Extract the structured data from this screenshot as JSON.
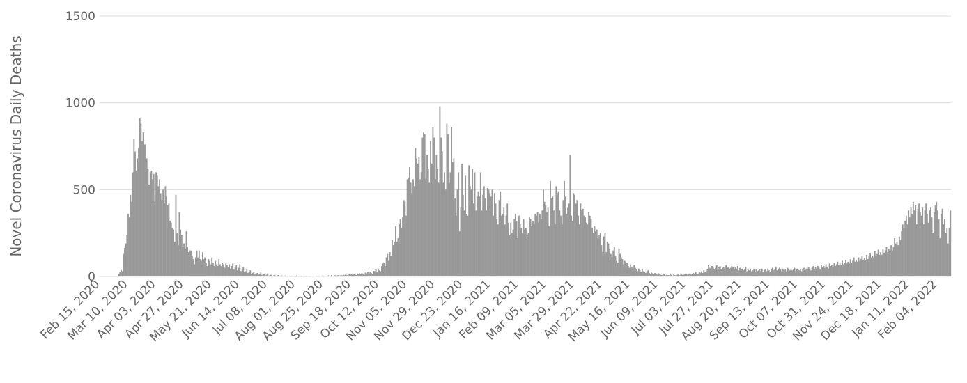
{
  "chart_data": {
    "type": "bar",
    "y_label": "Novel Coronavirus Daily Deaths",
    "color": "#999999",
    "grid": true,
    "ylim": [
      0,
      1500
    ],
    "yticks": [
      0,
      500,
      1000,
      1500
    ],
    "categories": [
      "Feb 15, 2020",
      null,
      null,
      null,
      null,
      null,
      null,
      null,
      null,
      null,
      null,
      null,
      null,
      null,
      null,
      null,
      null,
      null,
      null,
      null,
      null,
      null,
      null,
      null,
      "Mar 10, 2020",
      null,
      null,
      null,
      null,
      null,
      null,
      null,
      null,
      null,
      null,
      null,
      null,
      null,
      null,
      null,
      null,
      null,
      null,
      null,
      null,
      null,
      null,
      null,
      "Apr 03, 2020",
      null,
      null,
      null,
      null,
      null,
      null,
      null,
      null,
      null,
      null,
      null,
      null,
      null,
      null,
      null,
      null,
      null,
      null,
      null,
      null,
      null,
      null,
      null,
      "Apr 27, 2020",
      null,
      null,
      null,
      null,
      null,
      null,
      null,
      null,
      null,
      null,
      null,
      null,
      null,
      null,
      null,
      null,
      null,
      null,
      null,
      null,
      null,
      null,
      null,
      "May 21, 2020",
      null,
      null,
      null,
      null,
      null,
      null,
      null,
      null,
      null,
      null,
      null,
      null,
      null,
      null,
      null,
      null,
      null,
      null,
      null,
      null,
      null,
      null,
      null,
      "Jun 14, 2020",
      null,
      null,
      null,
      null,
      null,
      null,
      null,
      null,
      null,
      null,
      null,
      null,
      null,
      null,
      null,
      null,
      null,
      null,
      null,
      null,
      null,
      null,
      null,
      "Jul 08, 2020",
      null,
      null,
      null,
      null,
      null,
      null,
      null,
      null,
      null,
      null,
      null,
      null,
      null,
      null,
      null,
      null,
      null,
      null,
      null,
      null,
      null,
      null,
      null,
      "Aug 01, 2020",
      null,
      null,
      null,
      null,
      null,
      null,
      null,
      null,
      null,
      null,
      null,
      null,
      null,
      null,
      null,
      null,
      null,
      null,
      null,
      null,
      null,
      null,
      null,
      "Aug 25, 2020",
      null,
      null,
      null,
      null,
      null,
      null,
      null,
      null,
      null,
      null,
      null,
      null,
      null,
      null,
      null,
      null,
      null,
      null,
      null,
      null,
      null,
      null,
      null,
      "Sep 18, 2020",
      null,
      null,
      null,
      null,
      null,
      null,
      null,
      null,
      null,
      null,
      null,
      null,
      null,
      null,
      null,
      null,
      null,
      null,
      null,
      null,
      null,
      null,
      null,
      "Oct 12, 2020",
      null,
      null,
      null,
      null,
      null,
      null,
      null,
      null,
      null,
      null,
      null,
      null,
      null,
      null,
      null,
      null,
      null,
      null,
      null,
      null,
      null,
      null,
      null,
      "Nov 05, 2020",
      null,
      null,
      null,
      null,
      null,
      null,
      null,
      null,
      null,
      null,
      null,
      null,
      null,
      null,
      null,
      null,
      null,
      null,
      null,
      null,
      null,
      null,
      null,
      "Nov 29, 2020",
      null,
      null,
      null,
      null,
      null,
      null,
      null,
      null,
      null,
      null,
      null,
      null,
      null,
      null,
      null,
      null,
      null,
      null,
      null,
      null,
      null,
      null,
      null,
      "Dec 23, 2020",
      null,
      null,
      null,
      null,
      null,
      null,
      null,
      null,
      null,
      null,
      null,
      null,
      null,
      null,
      null,
      null,
      null,
      null,
      null,
      null,
      null,
      null,
      null,
      "Jan 16, 2021",
      null,
      null,
      null,
      null,
      null,
      null,
      null,
      null,
      null,
      null,
      null,
      null,
      null,
      null,
      null,
      null,
      null,
      null,
      null,
      null,
      null,
      null,
      null,
      "Feb 09, 2021",
      null,
      null,
      null,
      null,
      null,
      null,
      null,
      null,
      null,
      null,
      null,
      null,
      null,
      null,
      null,
      null,
      null,
      null,
      null,
      null,
      null,
      null,
      null,
      "Mar 05, 2021",
      null,
      null,
      null,
      null,
      null,
      null,
      null,
      null,
      null,
      null,
      null,
      null,
      null,
      null,
      null,
      null,
      null,
      null,
      null,
      null,
      null,
      null,
      null,
      "Mar 29, 2021",
      null,
      null,
      null,
      null,
      null,
      null,
      null,
      null,
      null,
      null,
      null,
      null,
      null,
      null,
      null,
      null,
      null,
      null,
      null,
      null,
      null,
      null,
      null,
      "Apr 22, 2021",
      null,
      null,
      null,
      null,
      null,
      null,
      null,
      null,
      null,
      null,
      null,
      null,
      null,
      null,
      null,
      null,
      null,
      null,
      null,
      null,
      null,
      null,
      null,
      "May 16, 2021",
      null,
      null,
      null,
      null,
      null,
      null,
      null,
      null,
      null,
      null,
      null,
      null,
      null,
      null,
      null,
      null,
      null,
      null,
      null,
      null,
      null,
      null,
      null,
      "Jun 09, 2021",
      null,
      null,
      null,
      null,
      null,
      null,
      null,
      null,
      null,
      null,
      null,
      null,
      null,
      null,
      null,
      null,
      null,
      null,
      null,
      null,
      null,
      null,
      null,
      "Jul 03, 2021",
      null,
      null,
      null,
      null,
      null,
      null,
      null,
      null,
      null,
      null,
      null,
      null,
      null,
      null,
      null,
      null,
      null,
      null,
      null,
      null,
      null,
      null,
      null,
      "Jul 27, 2021",
      null,
      null,
      null,
      null,
      null,
      null,
      null,
      null,
      null,
      null,
      null,
      null,
      null,
      null,
      null,
      null,
      null,
      null,
      null,
      null,
      null,
      null,
      null,
      "Aug 20, 2021",
      null,
      null,
      null,
      null,
      null,
      null,
      null,
      null,
      null,
      null,
      null,
      null,
      null,
      null,
      null,
      null,
      null,
      null,
      null,
      null,
      null,
      null,
      null,
      "Sep 13, 2021",
      null,
      null,
      null,
      null,
      null,
      null,
      null,
      null,
      null,
      null,
      null,
      null,
      null,
      null,
      null,
      null,
      null,
      null,
      null,
      null,
      null,
      null,
      null,
      "Oct 07, 2021",
      null,
      null,
      null,
      null,
      null,
      null,
      null,
      null,
      null,
      null,
      null,
      null,
      null,
      null,
      null,
      null,
      null,
      null,
      null,
      null,
      null,
      null,
      null,
      "Oct 31, 2021",
      null,
      null,
      null,
      null,
      null,
      null,
      null,
      null,
      null,
      null,
      null,
      null,
      null,
      null,
      null,
      null,
      null,
      null,
      null,
      null,
      null,
      null,
      null,
      "Nov 24, 2021",
      null,
      null,
      null,
      null,
      null,
      null,
      null,
      null,
      null,
      null,
      null,
      null,
      null,
      null,
      null,
      null,
      null,
      null,
      null,
      null,
      null,
      null,
      null,
      "Dec 18, 2021",
      null,
      null,
      null,
      null,
      null,
      null,
      null,
      null,
      null,
      null,
      null,
      null,
      null,
      null,
      null,
      null,
      null,
      null,
      null,
      null,
      null,
      null,
      null,
      "Jan 11, 2022",
      null,
      null,
      null,
      null,
      null,
      null,
      null,
      null,
      null,
      null,
      null,
      null,
      null,
      null,
      null,
      null,
      null,
      null,
      null,
      null,
      null,
      null,
      null,
      "Feb 04, 2022",
      null,
      null,
      null,
      null,
      null,
      null,
      null,
      null,
      null,
      null,
      null
    ],
    "values": [
      0,
      0,
      0,
      0,
      0,
      0,
      0,
      0,
      0,
      0,
      0,
      0,
      0,
      0,
      0,
      0,
      15,
      25,
      38,
      30,
      130,
      165,
      190,
      240,
      360,
      340,
      470,
      430,
      600,
      790,
      720,
      610,
      680,
      740,
      910,
      880,
      780,
      830,
      760,
      760,
      680,
      620,
      530,
      600,
      610,
      560,
      590,
      430,
      600,
      580,
      520,
      560,
      480,
      440,
      500,
      420,
      520,
      460,
      410,
      420,
      320,
      310,
      280,
      270,
      200,
      470,
      250,
      180,
      370,
      270,
      240,
      170,
      190,
      160,
      260,
      170,
      140,
      150,
      150,
      120,
      100,
      70,
      110,
      150,
      110,
      150,
      100,
      90,
      140,
      100,
      110,
      80,
      60,
      100,
      90,
      70,
      110,
      80,
      60,
      90,
      70,
      60,
      100,
      70,
      60,
      80,
      70,
      50,
      75,
      65,
      55,
      70,
      45,
      60,
      75,
      40,
      55,
      65,
      35,
      50,
      70,
      30,
      40,
      55,
      25,
      30,
      40,
      20,
      25,
      35,
      15,
      20,
      25,
      12,
      18,
      20,
      10,
      15,
      22,
      8,
      12,
      15,
      6,
      10,
      18,
      5,
      8,
      10,
      4,
      6,
      9,
      3,
      5,
      8,
      2,
      4,
      6,
      3,
      2,
      5,
      2,
      3,
      1,
      4,
      2,
      0,
      3,
      1,
      2,
      5,
      0,
      2,
      1,
      3,
      0,
      2,
      1,
      3,
      0,
      1,
      2,
      1,
      0,
      3,
      2,
      1,
      4,
      2,
      3,
      1,
      2,
      5,
      2,
      3,
      4,
      2,
      6,
      3,
      4,
      8,
      3,
      5,
      7,
      4,
      6,
      8,
      5,
      9,
      6,
      10,
      7,
      12,
      8,
      6,
      14,
      10,
      12,
      9,
      15,
      11,
      8,
      16,
      13,
      18,
      12,
      20,
      15,
      10,
      22,
      18,
      25,
      15,
      28,
      20,
      14,
      32,
      30,
      40,
      25,
      45,
      35,
      30,
      60,
      75,
      80,
      60,
      110,
      130,
      90,
      140,
      120,
      210,
      180,
      200,
      290,
      200,
      220,
      300,
      330,
      280,
      340,
      440,
      430,
      350,
      560,
      570,
      630,
      540,
      480,
      560,
      520,
      740,
      680,
      650,
      690,
      560,
      600,
      800,
      830,
      820,
      560,
      700,
      620,
      540,
      780,
      650,
      860,
      800,
      560,
      700,
      620,
      540,
      980,
      800,
      720,
      540,
      600,
      500,
      880,
      820,
      540,
      600,
      860,
      660,
      680,
      450,
      350,
      500,
      600,
      260,
      400,
      650,
      470,
      380,
      580,
      360,
      350,
      640,
      520,
      500,
      620,
      420,
      600,
      380,
      460,
      490,
      460,
      600,
      380,
      470,
      520,
      450,
      380,
      510,
      500,
      480,
      460,
      500,
      350,
      480,
      420,
      330,
      300,
      440,
      490,
      350,
      360,
      400,
      300,
      350,
      420,
      310,
      240,
      310,
      250,
      270,
      330,
      360,
      320,
      220,
      350,
      300,
      280,
      250,
      330,
      270,
      280,
      240,
      250,
      340,
      330,
      290,
      320,
      300,
      360,
      350,
      370,
      310,
      360,
      330,
      380,
      500,
      430,
      410,
      370,
      400,
      290,
      550,
      450,
      460,
      380,
      300,
      520,
      480,
      490,
      380,
      350,
      300,
      440,
      550,
      460,
      360,
      400,
      420,
      700,
      350,
      320,
      480,
      470,
      420,
      440,
      350,
      300,
      420,
      380,
      390,
      350,
      340,
      310,
      300,
      370,
      350,
      330,
      280,
      250,
      290,
      260,
      270,
      220,
      240,
      250,
      180,
      140,
      230,
      250,
      140,
      200,
      190,
      160,
      130,
      110,
      150,
      170,
      120,
      90,
      80,
      160,
      130,
      110,
      100,
      70,
      90,
      75,
      80,
      60,
      50,
      70,
      55,
      45,
      65,
      50,
      40,
      30,
      45,
      35,
      25,
      40,
      30,
      25,
      20,
      30,
      35,
      20,
      15,
      22,
      18,
      12,
      20,
      15,
      10,
      18,
      12,
      10,
      8,
      14,
      12,
      6,
      10,
      8,
      7,
      12,
      9,
      5,
      10,
      8,
      6,
      9,
      12,
      7,
      10,
      14,
      8,
      11,
      12,
      15,
      10,
      14,
      18,
      12,
      16,
      20,
      15,
      25,
      18,
      14,
      28,
      22,
      30,
      20,
      35,
      28,
      22,
      40,
      65,
      50,
      45,
      60,
      55,
      40,
      50,
      65,
      45,
      55,
      60,
      40,
      50,
      55,
      45,
      65,
      50,
      55,
      45,
      50,
      60,
      55,
      40,
      55,
      45,
      60,
      35,
      50,
      40,
      45,
      35,
      40,
      55,
      30,
      45,
      35,
      40,
      30,
      35,
      45,
      25,
      40,
      30,
      35,
      40,
      30,
      45,
      28,
      38,
      42,
      30,
      45,
      35,
      28,
      40,
      50,
      35,
      40,
      55,
      35,
      45,
      50,
      40,
      30,
      45,
      35,
      40,
      30,
      50,
      40,
      35,
      45,
      35,
      40,
      50,
      30,
      45,
      40,
      35,
      45,
      30,
      40,
      50,
      35,
      45,
      40,
      55,
      45,
      35,
      50,
      60,
      45,
      55,
      45,
      60,
      50,
      40,
      65,
      55,
      60,
      50,
      70,
      55,
      45,
      75,
      60,
      65,
      55,
      80,
      60,
      70,
      85,
      65,
      75,
      65,
      90,
      70,
      80,
      95,
      75,
      85,
      75,
      100,
      80,
      90,
      110,
      85,
      95,
      85,
      110,
      90,
      100,
      120,
      95,
      105,
      95,
      125,
      100,
      115,
      135,
      110,
      120,
      110,
      145,
      120,
      130,
      155,
      125,
      140,
      125,
      160,
      135,
      150,
      170,
      140,
      160,
      145,
      180,
      150,
      170,
      220,
      190,
      200,
      180,
      230,
      210,
      260,
      300,
      280,
      320,
      350,
      300,
      380,
      340,
      400,
      360,
      430,
      380,
      410,
      300,
      390,
      420,
      370,
      350,
      400,
      300,
      380,
      420,
      360,
      310,
      380,
      400,
      340,
      250,
      370,
      410,
      430,
      380,
      330,
      220,
      360,
      390,
      300,
      330,
      250,
      280,
      190,
      280,
      380
    ]
  }
}
